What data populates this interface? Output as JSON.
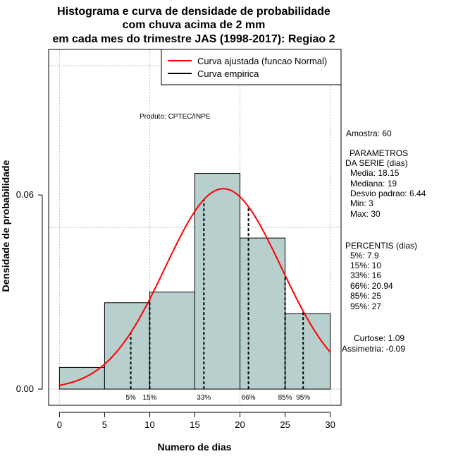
{
  "chart_data": {
    "type": "bar",
    "title_lines": [
      "Histograma e curva de densidade de probabilidade",
      "com chuva acima de 2 mm",
      "em cada mes do trimestre JAS (1998-2017): Regiao 2"
    ],
    "xlabel": "Numero de dias",
    "ylabel": "Densidade de probabilidade",
    "xlim": [
      -1.2,
      31.2
    ],
    "ylim": [
      -0.005,
      0.105
    ],
    "x_ticks": [
      0,
      5,
      10,
      15,
      20,
      25,
      30
    ],
    "y_ticks": [
      0.0,
      0.06
    ],
    "y_tick_labels": [
      "0.00",
      "0.06"
    ],
    "grid_x": [
      0,
      10,
      20,
      30
    ],
    "grid_y": [
      0.0,
      0.05,
      0.1
    ],
    "bins": [
      {
        "start": 0,
        "end": 5,
        "density": 0.0067
      },
      {
        "start": 5,
        "end": 10,
        "density": 0.0267
      },
      {
        "start": 10,
        "end": 15,
        "density": 0.03
      },
      {
        "start": 15,
        "end": 20,
        "density": 0.0667
      },
      {
        "start": 20,
        "end": 25,
        "density": 0.0467
      },
      {
        "start": 25,
        "end": 30,
        "density": 0.0233
      }
    ],
    "normal_fit": {
      "mean": 18.15,
      "sd": 6.44
    },
    "percentiles": [
      {
        "label": "5%",
        "x": 7.9
      },
      {
        "label": "15%",
        "x": 10
      },
      {
        "label": "33%",
        "x": 16
      },
      {
        "label": "66%",
        "x": 20.94
      },
      {
        "label": "85%",
        "x": 25
      },
      {
        "label": "95%",
        "x": 27
      }
    ],
    "legend": {
      "placement": "top-right",
      "entries": [
        {
          "label": "Curva ajustada (funcao Normal)",
          "color": "#ff0000"
        },
        {
          "label": "Curva empirica",
          "color": "#000000"
        }
      ]
    },
    "bar_color": "#b7cfcd",
    "curve_color": "#ff0000"
  },
  "annotation": "Produto: CPTEC/INPE",
  "stats": {
    "amostra": "Amostra: 60",
    "param_title_1": "PARAMETROS",
    "param_title_2": "DA SERIE (dias)",
    "media": "Media: 18.15",
    "mediana": "Mediana: 19",
    "desvio": "Desvio padrao: 6.44",
    "min": "Min: 3",
    "max": "Max: 30",
    "percentis_title": "PERCENTIS (dias)",
    "p5": "5%: 7.9",
    "p15": "15%: 10",
    "p33": "33%: 16",
    "p66": "66%: 20.94",
    "p85": "85%: 25",
    "p95": "95%: 27",
    "curtose": "Curtose: 1.09",
    "assimetria": "Assimetria: -0.09"
  }
}
